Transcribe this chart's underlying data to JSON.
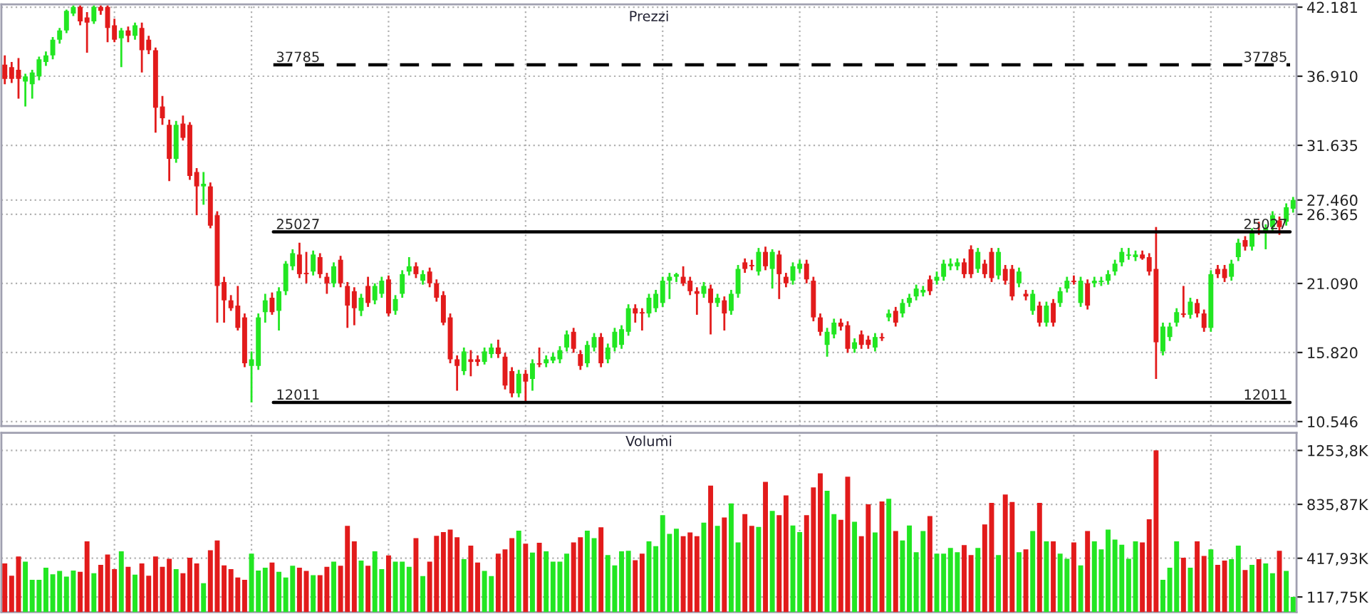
{
  "chart_data": [
    {
      "type": "candlestick",
      "title": "Prezzi",
      "grid": true,
      "categories": [
        null,
        null,
        null,
        null,
        null,
        null,
        null,
        null,
        null,
        null,
        null,
        null,
        null,
        null,
        null,
        null,
        null,
        null,
        null,
        null,
        null,
        null,
        null,
        null,
        null,
        null,
        null,
        null,
        null,
        null,
        null,
        null,
        null,
        null,
        null,
        null,
        null,
        null,
        null,
        null,
        null,
        null,
        null,
        null,
        null,
        null,
        null,
        null,
        null,
        null,
        null,
        null,
        null,
        null,
        null,
        null,
        null,
        null,
        null,
        null,
        null,
        null,
        null,
        null,
        null,
        null,
        null,
        null,
        null,
        null,
        null,
        null,
        null,
        null,
        null,
        null,
        null,
        null,
        null,
        null,
        null,
        null,
        null,
        null,
        null,
        null,
        null,
        null,
        null,
        null,
        null,
        null,
        null,
        null,
        null,
        null,
        null,
        null,
        null,
        null,
        null,
        null,
        null,
        null,
        null,
        null,
        null,
        null,
        null,
        null,
        null,
        null,
        null,
        null,
        null,
        null,
        null,
        null,
        null,
        null,
        null,
        null,
        null,
        null,
        null,
        null,
        null,
        null,
        null,
        null,
        null,
        null,
        null,
        null,
        null,
        null,
        null,
        null,
        null,
        null,
        null,
        null,
        null,
        null,
        null,
        null,
        null,
        null,
        null,
        null,
        null,
        null,
        null,
        null,
        null,
        null,
        null,
        null,
        null,
        null,
        null,
        null,
        null,
        null,
        null,
        null,
        null,
        null,
        null,
        null,
        null,
        null,
        null,
        null,
        null,
        null,
        null,
        null,
        null,
        null,
        null,
        null,
        null,
        null,
        null,
        null,
        null,
        null,
        null
      ],
      "ohlc": [
        [
          37800,
          38500,
          36300,
          36700
        ],
        [
          37600,
          38000,
          36400,
          36700
        ],
        [
          37400,
          38300,
          35200,
          36700
        ],
        [
          36500,
          37100,
          34600,
          36900
        ],
        [
          36300,
          37400,
          35200,
          37200
        ],
        [
          36900,
          38400,
          36600,
          38200
        ],
        [
          38000,
          38800,
          37700,
          38500
        ],
        [
          38500,
          39900,
          38200,
          39700
        ],
        [
          39700,
          40600,
          39400,
          40400
        ],
        [
          40400,
          42000,
          40200,
          41900
        ],
        [
          41700,
          42300,
          41500,
          42200
        ],
        [
          42200,
          42300,
          40800,
          41100
        ],
        [
          41400,
          41800,
          38700,
          41000
        ],
        [
          41100,
          42300,
          40900,
          42200
        ],
        [
          42200,
          42300,
          41600,
          41900
        ],
        [
          42200,
          42300,
          39500,
          40600
        ],
        [
          40800,
          41300,
          39500,
          39700
        ],
        [
          39800,
          40600,
          37600,
          40400
        ],
        [
          40400,
          40700,
          39500,
          40000
        ],
        [
          40000,
          41000,
          39700,
          40800
        ],
        [
          40600,
          41000,
          37200,
          38900
        ],
        [
          39700,
          40000,
          38600,
          38900
        ],
        [
          38900,
          39100,
          32600,
          34500
        ],
        [
          34600,
          35400,
          33200,
          33700
        ],
        [
          33200,
          33600,
          28900,
          30600
        ],
        [
          30600,
          33500,
          30300,
          33200
        ],
        [
          33300,
          33900,
          32000,
          32200
        ],
        [
          33200,
          33400,
          29000,
          29300
        ],
        [
          29600,
          29900,
          26300,
          28500
        ],
        [
          28500,
          29600,
          27100,
          28700
        ],
        [
          28500,
          28800,
          25300,
          25500
        ],
        [
          26300,
          26600,
          18100,
          20900
        ],
        [
          21200,
          21600,
          18100,
          19800
        ],
        [
          19800,
          20200,
          19000,
          19200
        ],
        [
          19400,
          20900,
          17500,
          17700
        ],
        [
          18500,
          18800,
          14700,
          15000
        ],
        [
          14800,
          15900,
          12000,
          15300
        ],
        [
          14800,
          18800,
          14500,
          18500
        ],
        [
          18900,
          20300,
          18100,
          19800
        ],
        [
          20000,
          20400,
          18700,
          18900
        ],
        [
          19000,
          20800,
          17500,
          20500
        ],
        [
          20500,
          22800,
          20200,
          22600
        ],
        [
          22400,
          23700,
          22100,
          23400
        ],
        [
          23300,
          24200,
          21500,
          21800
        ],
        [
          21900,
          23500,
          21100,
          21800
        ],
        [
          22000,
          23600,
          21700,
          23300
        ],
        [
          23100,
          23400,
          21500,
          21800
        ],
        [
          21600,
          21900,
          20300,
          21100
        ],
        [
          21100,
          22700,
          20800,
          22400
        ],
        [
          22900,
          23200,
          20800,
          21100
        ],
        [
          20900,
          21200,
          17700,
          19400
        ],
        [
          20500,
          20800,
          17900,
          19200
        ],
        [
          19000,
          20300,
          18600,
          20000
        ],
        [
          20900,
          21600,
          19300,
          19600
        ],
        [
          19800,
          21100,
          19500,
          20900
        ],
        [
          20300,
          21600,
          20000,
          21300
        ],
        [
          21400,
          21700,
          18600,
          18800
        ],
        [
          19000,
          20200,
          18700,
          19900
        ],
        [
          20300,
          22100,
          20000,
          21800
        ],
        [
          22000,
          23100,
          21700,
          22400
        ],
        [
          22400,
          22700,
          21500,
          21800
        ],
        [
          21300,
          22100,
          21000,
          21800
        ],
        [
          22000,
          22300,
          20800,
          21100
        ],
        [
          21100,
          21400,
          19700,
          20000
        ],
        [
          20200,
          20500,
          17900,
          18100
        ],
        [
          18500,
          18800,
          15000,
          15300
        ],
        [
          15300,
          15600,
          12900,
          14800
        ],
        [
          14400,
          16200,
          14100,
          15900
        ],
        [
          15300,
          16000,
          14000,
          15100
        ],
        [
          15300,
          15600,
          14800,
          15100
        ],
        [
          15100,
          16200,
          14900,
          15900
        ],
        [
          15700,
          16500,
          15400,
          16200
        ],
        [
          16200,
          16800,
          15400,
          15700
        ],
        [
          15500,
          15800,
          13000,
          13300
        ],
        [
          14400,
          14700,
          12400,
          12700
        ],
        [
          12700,
          14500,
          12400,
          14200
        ],
        [
          14200,
          14500,
          12000,
          13600
        ],
        [
          13800,
          15300,
          12900,
          15000
        ],
        [
          15000,
          16200,
          14700,
          14900
        ],
        [
          15000,
          15600,
          14700,
          15300
        ],
        [
          15200,
          15800,
          15000,
          15500
        ],
        [
          15300,
          16300,
          15000,
          16000
        ],
        [
          16200,
          17500,
          15900,
          17200
        ],
        [
          17400,
          17700,
          15800,
          16100
        ],
        [
          15700,
          16000,
          14500,
          14800
        ],
        [
          15000,
          16700,
          14700,
          16400
        ],
        [
          16200,
          17300,
          15900,
          17000
        ],
        [
          17000,
          17300,
          14700,
          15000
        ],
        [
          15300,
          16500,
          15000,
          16200
        ],
        [
          16200,
          17700,
          15900,
          17400
        ],
        [
          16400,
          17900,
          16100,
          17600
        ],
        [
          17400,
          19500,
          17100,
          19200
        ],
        [
          19200,
          19500,
          18100,
          18800
        ],
        [
          18900,
          19200,
          17500,
          18800
        ],
        [
          18800,
          20300,
          18500,
          20000
        ],
        [
          19200,
          20600,
          18900,
          20300
        ],
        [
          19600,
          21600,
          19300,
          21300
        ],
        [
          21300,
          21900,
          19900,
          21600
        ],
        [
          21600,
          21900,
          21200,
          21800
        ],
        [
          21600,
          22400,
          20900,
          21100
        ],
        [
          21300,
          21600,
          20200,
          20500
        ],
        [
          20500,
          20800,
          18700,
          20300
        ],
        [
          20300,
          21200,
          20000,
          20900
        ],
        [
          20700,
          21000,
          17200,
          19600
        ],
        [
          19600,
          20300,
          19300,
          20000
        ],
        [
          19800,
          20100,
          17500,
          18800
        ],
        [
          19000,
          20600,
          18700,
          20300
        ],
        [
          20300,
          22500,
          20000,
          22200
        ],
        [
          22700,
          23000,
          21900,
          22200
        ],
        [
          22500,
          22900,
          22100,
          22400
        ],
        [
          22000,
          23800,
          21700,
          23500
        ],
        [
          23500,
          23900,
          22100,
          22400
        ],
        [
          22200,
          23700,
          20700,
          23500
        ],
        [
          23300,
          23600,
          19900,
          21800
        ],
        [
          21600,
          21900,
          20800,
          21100
        ],
        [
          21300,
          22700,
          21000,
          22400
        ],
        [
          22200,
          22900,
          21900,
          22600
        ],
        [
          22600,
          22900,
          21100,
          21400
        ],
        [
          21300,
          21600,
          18200,
          18500
        ],
        [
          18500,
          18800,
          17100,
          17400
        ],
        [
          16400,
          17700,
          15500,
          17400
        ],
        [
          17200,
          18400,
          16900,
          18100
        ],
        [
          18100,
          18400,
          17500,
          17800
        ],
        [
          17900,
          18200,
          15800,
          16100
        ],
        [
          16100,
          16900,
          15800,
          16600
        ],
        [
          17200,
          17500,
          16100,
          16400
        ],
        [
          16800,
          17100,
          16100,
          16400
        ],
        [
          16200,
          17300,
          15900,
          17000
        ],
        [
          17000,
          17300,
          16700,
          16900
        ],
        [
          18500,
          19100,
          18200,
          18800
        ],
        [
          19000,
          19300,
          17800,
          18100
        ],
        [
          18800,
          19900,
          18500,
          19600
        ],
        [
          19600,
          20300,
          19300,
          20000
        ],
        [
          20100,
          21000,
          19800,
          20700
        ],
        [
          20400,
          20900,
          20100,
          20600
        ],
        [
          21400,
          21700,
          20200,
          20500
        ],
        [
          21300,
          22000,
          21000,
          21600
        ],
        [
          21600,
          22900,
          21300,
          22600
        ],
        [
          22400,
          23000,
          22100,
          22600
        ],
        [
          22400,
          23000,
          22100,
          22700
        ],
        [
          22700,
          23000,
          21500,
          21800
        ],
        [
          23700,
          24000,
          21500,
          21800
        ],
        [
          22200,
          23800,
          21900,
          23500
        ],
        [
          22600,
          22900,
          21500,
          21800
        ],
        [
          23500,
          23800,
          21200,
          21500
        ],
        [
          21700,
          23800,
          21400,
          23500
        ],
        [
          22200,
          22500,
          21000,
          21300
        ],
        [
          22200,
          22500,
          19800,
          20100
        ],
        [
          21100,
          22300,
          20800,
          22000
        ],
        [
          20300,
          20600,
          19800,
          20100
        ],
        [
          19000,
          20600,
          18700,
          20300
        ],
        [
          19400,
          19700,
          17800,
          18100
        ],
        [
          18100,
          19700,
          17800,
          19400
        ],
        [
          19600,
          19900,
          17800,
          18100
        ],
        [
          19600,
          20800,
          19300,
          20500
        ],
        [
          20700,
          21600,
          20400,
          21300
        ],
        [
          21300,
          21700,
          21000,
          21200
        ],
        [
          19600,
          21600,
          19300,
          21300
        ],
        [
          21100,
          21400,
          19100,
          19400
        ],
        [
          21100,
          21600,
          20800,
          21300
        ],
        [
          21200,
          21600,
          20900,
          21300
        ],
        [
          21300,
          22100,
          21000,
          21800
        ],
        [
          22000,
          22900,
          21700,
          22600
        ],
        [
          22700,
          23800,
          22400,
          23500
        ],
        [
          23200,
          23800,
          22900,
          23300
        ],
        [
          23100,
          23600,
          22800,
          23300
        ],
        [
          23300,
          23600,
          22900,
          23000
        ],
        [
          23100,
          23400,
          21700,
          22000
        ],
        [
          22200,
          25400,
          13800,
          16600
        ],
        [
          15900,
          18100,
          15600,
          17800
        ],
        [
          17000,
          18100,
          16700,
          17800
        ],
        [
          18100,
          19200,
          17800,
          18900
        ],
        [
          18800,
          20900,
          18500,
          18700
        ],
        [
          18700,
          20000,
          18400,
          19700
        ],
        [
          19600,
          19900,
          18500,
          18800
        ],
        [
          18800,
          19100,
          17400,
          17700
        ],
        [
          17700,
          22100,
          17400,
          21800
        ],
        [
          22200,
          22500,
          21500,
          21800
        ],
        [
          22200,
          22500,
          21200,
          21500
        ],
        [
          21600,
          22900,
          21300,
          22600
        ],
        [
          23100,
          24500,
          22800,
          24200
        ],
        [
          24400,
          24700,
          23600,
          23900
        ],
        [
          23900,
          25300,
          23600,
          25000
        ],
        [
          25100,
          25800,
          24800,
          25000
        ],
        [
          25000,
          25600,
          23700,
          25300
        ],
        [
          25400,
          26600,
          25100,
          26300
        ],
        [
          25900,
          26200,
          24800,
          25400
        ],
        [
          25800,
          27200,
          25500,
          26900
        ],
        [
          26800,
          27700,
          26500,
          27460
        ]
      ],
      "colors": [
        "#e21b1b",
        "#e21b1b",
        "#e21b1b",
        "#22e622",
        "#22e622",
        "#22e622",
        "#22e622",
        "#22e622",
        "#22e622",
        "#22e622",
        "#22e622",
        "#e21b1b",
        "#e21b1b",
        "#22e622",
        "#e21b1b",
        "#e21b1b",
        "#e21b1b",
        "#22e622",
        "#e21b1b",
        "#22e622",
        "#e21b1b",
        "#e21b1b",
        "#e21b1b",
        "#e21b1b",
        "#e21b1b",
        "#22e622",
        "#e21b1b",
        "#e21b1b",
        "#e21b1b",
        "#22e622",
        "#e21b1b",
        "#e21b1b",
        "#e21b1b",
        "#e21b1b",
        "#e21b1b",
        "#e21b1b",
        "#22e622",
        "#22e622",
        "#22e622",
        "#e21b1b",
        "#22e622",
        "#22e622",
        "#22e622",
        "#e21b1b",
        "#e21b1b",
        "#22e622",
        "#e21b1b",
        "#e21b1b",
        "#22e622",
        "#e21b1b",
        "#e21b1b",
        "#e21b1b",
        "#22e622",
        "#e21b1b",
        "#22e622",
        "#22e622",
        "#e21b1b",
        "#22e622",
        "#22e622",
        "#22e622",
        "#e21b1b",
        "#22e622",
        "#e21b1b",
        "#e21b1b",
        "#e21b1b",
        "#e21b1b",
        "#e21b1b",
        "#22e622",
        "#e21b1b",
        "#e21b1b",
        "#22e622",
        "#22e622",
        "#e21b1b",
        "#e21b1b",
        "#e21b1b",
        "#22e622",
        "#e21b1b",
        "#22e622",
        "#e21b1b",
        "#22e622",
        "#22e622",
        "#22e622",
        "#22e622",
        "#e21b1b",
        "#e21b1b",
        "#22e622",
        "#22e622",
        "#e21b1b",
        "#22e622",
        "#22e622",
        "#22e622",
        "#22e622",
        "#e21b1b",
        "#e21b1b",
        "#22e622",
        "#22e622",
        "#22e622",
        "#22e622",
        "#22e622",
        "#e21b1b",
        "#e21b1b",
        "#e21b1b",
        "#22e622",
        "#e21b1b",
        "#22e622",
        "#e21b1b",
        "#22e622",
        "#22e622",
        "#e21b1b",
        "#e21b1b",
        "#22e622",
        "#e21b1b",
        "#22e622",
        "#e21b1b",
        "#e21b1b",
        "#22e622",
        "#22e622",
        "#e21b1b",
        "#e21b1b",
        "#e21b1b",
        "#22e622",
        "#22e622",
        "#e21b1b",
        "#e21b1b",
        "#22e622",
        "#e21b1b",
        "#e21b1b",
        "#22e622",
        "#e21b1b",
        "#22e622",
        "#e21b1b",
        "#22e622",
        "#22e622",
        "#22e622",
        "#22e622",
        "#e21b1b",
        "#22e622",
        "#22e622",
        "#22e622",
        "#22e622",
        "#e21b1b",
        "#e21b1b",
        "#22e622",
        "#e21b1b",
        "#e21b1b",
        "#22e622",
        "#e21b1b",
        "#e21b1b",
        "#22e622",
        "#e21b1b",
        "#22e622",
        "#e21b1b",
        "#22e622",
        "#e21b1b",
        "#22e622",
        "#22e622",
        "#e21b1b",
        "#22e622",
        "#e21b1b",
        "#22e622",
        "#22e622",
        "#22e622",
        "#22e622",
        "#22e622",
        "#22e622",
        "#22e622",
        "#e21b1b",
        "#e21b1b",
        "#e21b1b",
        "#22e622",
        "#22e622",
        "#22e622",
        "#e21b1b",
        "#22e622",
        "#e21b1b",
        "#e21b1b",
        "#22e622",
        "#e21b1b",
        "#e21b1b",
        "#22e622",
        "#22e622",
        "#e21b1b",
        "#22e622",
        "#e21b1b",
        "#22e622",
        "#22e622",
        "#e21b1b",
        "#22e622",
        "#22e622"
      ],
      "ylim": [
        10200,
        42400
      ],
      "yticks": [
        {
          "value": 10546,
          "label": "10.546"
        },
        {
          "value": 15820,
          "label": "15.820"
        },
        {
          "value": 21090,
          "label": "21.090"
        },
        {
          "value": 26365,
          "label": "26.365"
        },
        {
          "value": 27460,
          "label": "27.460"
        },
        {
          "value": 31635,
          "label": "31.635"
        },
        {
          "value": 36910,
          "label": "36.910"
        },
        {
          "value": 42181,
          "label": "42.181"
        }
      ],
      "ref_lines": [
        {
          "axis": "y",
          "value": 37785,
          "label": "37785",
          "color": "#000000",
          "line_style": "dashed"
        },
        {
          "axis": "y",
          "value": 25027,
          "label": "25027",
          "color": "#000000",
          "line_style": "solid"
        },
        {
          "axis": "y",
          "value": 12011,
          "label": "12011",
          "color": "#000000",
          "line_style": "solid"
        }
      ]
    },
    {
      "type": "bar",
      "title": "Volumi",
      "grid": true,
      "categories": [
        null,
        null,
        null,
        null,
        null,
        null,
        null,
        null,
        null,
        null,
        null,
        null,
        null,
        null,
        null,
        null,
        null,
        null,
        null,
        null,
        null,
        null,
        null,
        null,
        null,
        null,
        null,
        null,
        null,
        null,
        null,
        null,
        null,
        null,
        null,
        null,
        null,
        null,
        null,
        null,
        null,
        null,
        null,
        null,
        null,
        null,
        null,
        null,
        null,
        null,
        null,
        null,
        null,
        null,
        null,
        null,
        null,
        null,
        null,
        null,
        null,
        null,
        null,
        null,
        null,
        null,
        null,
        null,
        null,
        null,
        null,
        null,
        null,
        null,
        null,
        null,
        null,
        null,
        null,
        null,
        null,
        null,
        null,
        null,
        null,
        null,
        null,
        null,
        null,
        null,
        null,
        null,
        null,
        null,
        null,
        null,
        null,
        null,
        null,
        null,
        null,
        null,
        null,
        null,
        null,
        null,
        null,
        null,
        null,
        null,
        null,
        null,
        null,
        null,
        null,
        null,
        null,
        null,
        null,
        null,
        null,
        null,
        null,
        null,
        null,
        null,
        null,
        null,
        null,
        null,
        null,
        null,
        null,
        null,
        null,
        null,
        null,
        null,
        null,
        null,
        null,
        null,
        null,
        null,
        null,
        null,
        null,
        null,
        null,
        null,
        null,
        null,
        null,
        null,
        null,
        null,
        null,
        null,
        null,
        null,
        null,
        null,
        null,
        null,
        null,
        null,
        null,
        null,
        null,
        null,
        null,
        null,
        null,
        null,
        null,
        null,
        null,
        null,
        null,
        null,
        null,
        null,
        null,
        null,
        null,
        null,
        null,
        null,
        null
      ],
      "values": [
        378,
        283,
        432,
        392,
        251,
        251,
        345,
        294,
        320,
        276,
        323,
        313,
        549,
        302,
        367,
        447,
        334,
        472,
        352,
        291,
        378,
        283,
        432,
        352,
        414,
        334,
        302,
        422,
        378,
        225,
        480,
        556,
        363,
        334,
        269,
        251,
        454,
        323,
        345,
        385,
        313,
        269,
        360,
        345,
        320,
        287,
        287,
        352,
        392,
        360,
        669,
        549,
        400,
        360,
        472,
        334,
        440,
        392,
        392,
        352,
        574,
        280,
        392,
        592,
        621,
        640,
        581,
        411,
        516,
        385,
        320,
        280,
        454,
        487,
        574,
        632,
        531,
        462,
        538,
        472,
        392,
        392,
        454,
        541,
        581,
        632,
        574,
        658,
        443,
        363,
        472,
        476,
        403,
        454,
        549,
        512,
        752,
        607,
        647,
        589,
        618,
        589,
        694,
        981,
        669,
        734,
        843,
        541,
        760,
        669,
        661,
        1010,
        785,
        752,
        905,
        672,
        621,
        752,
        967,
        1076,
        941,
        760,
        716,
        1050,
        701,
        589,
        836,
        618,
        858,
        879,
        629,
        556,
        672,
        465,
        629,
        745,
        454,
        454,
        498,
        465,
        520,
        443,
        498,
        680,
        847,
        443,
        912,
        854,
        465,
        487,
        629,
        847,
        549,
        549,
        454,
        414,
        541,
        363,
        629,
        549,
        487,
        640,
        563,
        523,
        414,
        549,
        541,
        720,
        1253.8,
        251,
        345,
        549,
        422,
        345,
        549,
        436,
        487,
        367,
        400,
        411,
        516,
        327,
        367,
        411,
        378,
        302,
        476,
        320,
        117.75
      ],
      "colors": [
        "#e21b1b",
        "#e21b1b",
        "#e21b1b",
        "#22e622",
        "#22e622",
        "#22e622",
        "#22e622",
        "#22e622",
        "#22e622",
        "#22e622",
        "#22e622",
        "#e21b1b",
        "#e21b1b",
        "#22e622",
        "#e21b1b",
        "#e21b1b",
        "#e21b1b",
        "#22e622",
        "#e21b1b",
        "#22e622",
        "#e21b1b",
        "#e21b1b",
        "#e21b1b",
        "#e21b1b",
        "#e21b1b",
        "#22e622",
        "#e21b1b",
        "#e21b1b",
        "#e21b1b",
        "#22e622",
        "#e21b1b",
        "#e21b1b",
        "#e21b1b",
        "#e21b1b",
        "#e21b1b",
        "#e21b1b",
        "#22e622",
        "#22e622",
        "#22e622",
        "#e21b1b",
        "#22e622",
        "#22e622",
        "#22e622",
        "#e21b1b",
        "#e21b1b",
        "#22e622",
        "#e21b1b",
        "#e21b1b",
        "#22e622",
        "#e21b1b",
        "#e21b1b",
        "#e21b1b",
        "#22e622",
        "#e21b1b",
        "#22e622",
        "#22e622",
        "#e21b1b",
        "#22e622",
        "#22e622",
        "#22e622",
        "#e21b1b",
        "#22e622",
        "#e21b1b",
        "#e21b1b",
        "#e21b1b",
        "#e21b1b",
        "#e21b1b",
        "#22e622",
        "#e21b1b",
        "#e21b1b",
        "#22e622",
        "#22e622",
        "#e21b1b",
        "#e21b1b",
        "#e21b1b",
        "#22e622",
        "#e21b1b",
        "#22e622",
        "#e21b1b",
        "#22e622",
        "#22e622",
        "#22e622",
        "#22e622",
        "#e21b1b",
        "#e21b1b",
        "#22e622",
        "#22e622",
        "#e21b1b",
        "#22e622",
        "#22e622",
        "#22e622",
        "#22e622",
        "#e21b1b",
        "#e21b1b",
        "#22e622",
        "#22e622",
        "#22e622",
        "#22e622",
        "#22e622",
        "#e21b1b",
        "#e21b1b",
        "#e21b1b",
        "#22e622",
        "#e21b1b",
        "#22e622",
        "#e21b1b",
        "#22e622",
        "#22e622",
        "#e21b1b",
        "#e21b1b",
        "#22e622",
        "#e21b1b",
        "#22e622",
        "#e21b1b",
        "#e21b1b",
        "#22e622",
        "#22e622",
        "#e21b1b",
        "#e21b1b",
        "#e21b1b",
        "#22e622",
        "#22e622",
        "#e21b1b",
        "#e21b1b",
        "#22e622",
        "#e21b1b",
        "#e21b1b",
        "#22e622",
        "#e21b1b",
        "#22e622",
        "#e21b1b",
        "#22e622",
        "#22e622",
        "#22e622",
        "#22e622",
        "#e21b1b",
        "#22e622",
        "#22e622",
        "#22e622",
        "#22e622",
        "#e21b1b",
        "#e21b1b",
        "#22e622",
        "#e21b1b",
        "#e21b1b",
        "#22e622",
        "#e21b1b",
        "#e21b1b",
        "#22e622",
        "#e21b1b",
        "#22e622",
        "#e21b1b",
        "#22e622",
        "#e21b1b",
        "#22e622",
        "#22e622",
        "#e21b1b",
        "#22e622",
        "#e21b1b",
        "#22e622",
        "#22e622",
        "#22e622",
        "#22e622",
        "#22e622",
        "#22e622",
        "#22e622",
        "#e21b1b",
        "#e21b1b",
        "#e21b1b",
        "#22e622",
        "#22e622",
        "#22e622",
        "#e21b1b",
        "#22e622",
        "#e21b1b",
        "#e21b1b",
        "#22e622",
        "#e21b1b",
        "#e21b1b",
        "#22e622",
        "#22e622",
        "#e21b1b",
        "#22e622",
        "#e21b1b",
        "#22e622",
        "#22e622",
        "#e21b1b",
        "#22e622",
        "#22e622"
      ],
      "ylim": [
        0,
        1390
      ],
      "yticks": [
        {
          "value": 117.75,
          "label": "117,75K"
        },
        {
          "value": 417.93,
          "label": "417,93K"
        },
        {
          "value": 835.87,
          "label": "835,87K"
        },
        {
          "value": 1253.8,
          "label": "1253,8K"
        }
      ]
    }
  ]
}
